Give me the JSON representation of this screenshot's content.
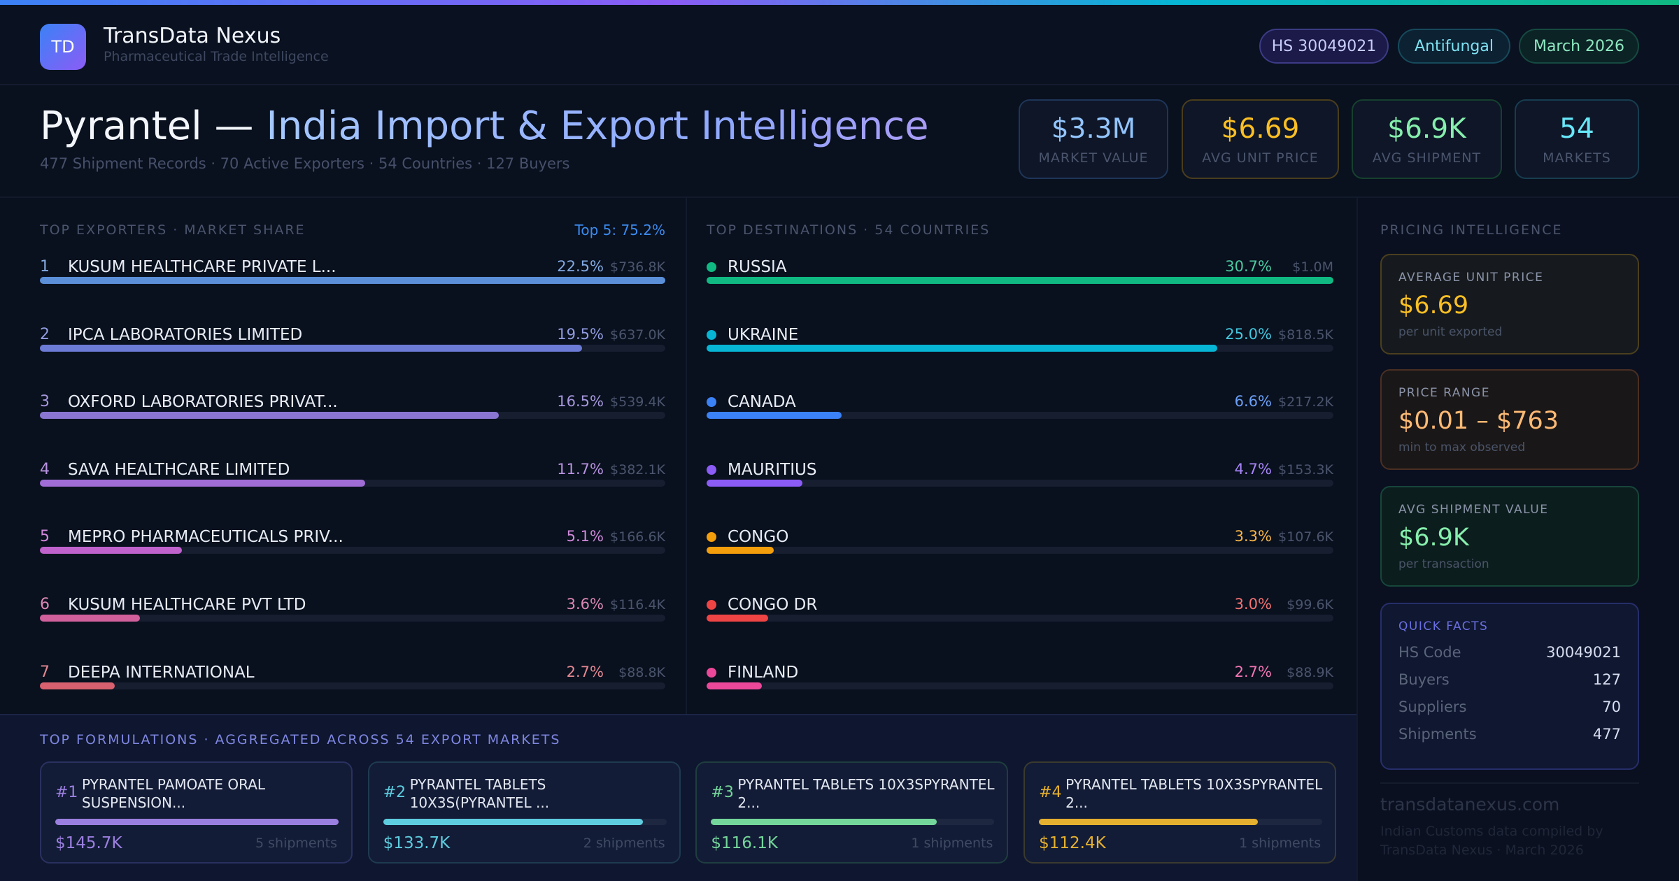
{
  "brand": {
    "logo": "TD",
    "name": "TransData Nexus",
    "subtitle": "Pharmaceutical Trade Intelligence"
  },
  "pills": [
    {
      "label": "HS 30049021"
    },
    {
      "label": "Antifungal"
    },
    {
      "label": "March 2026"
    }
  ],
  "hero": {
    "title_product": "Pyrantel —",
    "title_rest": "India Import & Export Intelligence",
    "subtitle": "477 Shipment Records · 70 Active Exporters · 54 Countries · 127 Buyers"
  },
  "kpis": [
    {
      "value": "$3.3M",
      "label": "MARKET VALUE",
      "color": "#93c5fd"
    },
    {
      "value": "$6.69",
      "label": "AVG UNIT PRICE",
      "color": "#fbbf24"
    },
    {
      "value": "$6.9K",
      "label": "AVG SHIPMENT",
      "color": "#86efac"
    },
    {
      "value": "54",
      "label": "MARKETS",
      "color": "#67e8f9"
    }
  ],
  "exporters": {
    "heading": "TOP EXPORTERS · MARKET SHARE",
    "top5": "Top 5: 75.2%",
    "items": [
      {
        "rank": "1",
        "name": "KUSUM HEALTHCARE PRIVATE L...",
        "pct": "22.5%",
        "value": "$736.8K",
        "share": 22.5,
        "color": "#5b8fd8"
      },
      {
        "rank": "2",
        "name": "IPCA LABORATORIES LIMITED",
        "pct": "19.5%",
        "value": "$637.0K",
        "share": 19.5,
        "color": "#6c7bd6"
      },
      {
        "rank": "3",
        "name": "OXFORD LABORATORIES PRIVAT...",
        "pct": "16.5%",
        "value": "$539.4K",
        "share": 16.5,
        "color": "#8a76d2"
      },
      {
        "rank": "4",
        "name": "SAVA HEALTHCARE LIMITED",
        "pct": "11.7%",
        "value": "$382.1K",
        "share": 11.7,
        "color": "#a06dd6"
      },
      {
        "rank": "5",
        "name": "MEPRO PHARMACEUTICALS PRIV...",
        "pct": "5.1%",
        "value": "$166.6K",
        "share": 5.1,
        "color": "#c062cc"
      },
      {
        "rank": "6",
        "name": "KUSUM HEALTHCARE PVT LTD",
        "pct": "3.6%",
        "value": "$116.4K",
        "share": 3.6,
        "color": "#d0609c"
      },
      {
        "rank": "7",
        "name": "DEEPA INTERNATIONAL",
        "pct": "2.7%",
        "value": "$88.8K",
        "share": 2.7,
        "color": "#d9606e"
      }
    ]
  },
  "destinations": {
    "heading": "TOP DESTINATIONS · 54 COUNTRIES",
    "items": [
      {
        "name": "RUSSIA",
        "pct": "30.7%",
        "value": "$1.0M",
        "share": 30.7,
        "color": "#10b981"
      },
      {
        "name": "UKRAINE",
        "pct": "25.0%",
        "value": "$818.5K",
        "share": 25.0,
        "color": "#06b6d4"
      },
      {
        "name": "CANADA",
        "pct": "6.6%",
        "value": "$217.2K",
        "share": 6.6,
        "color": "#3b82f6"
      },
      {
        "name": "MAURITIUS",
        "pct": "4.7%",
        "value": "$153.3K",
        "share": 4.7,
        "color": "#8b5cf6"
      },
      {
        "name": "CONGO",
        "pct": "3.3%",
        "value": "$107.6K",
        "share": 3.3,
        "color": "#f59e0b"
      },
      {
        "name": "CONGO DR",
        "pct": "3.0%",
        "value": "$99.6K",
        "share": 3.0,
        "color": "#ef4444"
      },
      {
        "name": "FINLAND",
        "pct": "2.7%",
        "value": "$88.9K",
        "share": 2.7,
        "color": "#ec4899"
      }
    ]
  },
  "formulations": {
    "heading": "TOP FORMULATIONS · AGGREGATED ACROSS 54 EXPORT MARKETS",
    "items": [
      {
        "rank": "#1",
        "name": "PYRANTEL PAMOATE ORAL SUSPENSION...",
        "value": "$145.7K",
        "amount": 145.7,
        "shipments": "5 shipments",
        "color": "#9b7fe0",
        "border": "#2a3160"
      },
      {
        "rank": "#2",
        "name": "PYRANTEL TABLETS 10X3S(PYRANTEL ...",
        "value": "$133.7K",
        "amount": 133.7,
        "shipments": "2 shipments",
        "color": "#5ecde0",
        "border": "#1f3a4f"
      },
      {
        "rank": "#3",
        "name": "PYRANTEL TABLETS 10X3SPYRANTEL 2...",
        "value": "$116.1K",
        "amount": 116.1,
        "shipments": "1 shipments",
        "color": "#74d69a",
        "border": "#1f3d3f"
      },
      {
        "rank": "#4",
        "name": "PYRANTEL TABLETS 10X3SPYRANTEL 2...",
        "value": "$112.4K",
        "amount": 112.4,
        "shipments": "1 shipments",
        "color": "#e5b02f",
        "border": "#3a3a2f"
      }
    ]
  },
  "pricing": {
    "heading": "PRICING INTELLIGENCE",
    "avg_unit": {
      "title": "AVERAGE UNIT PRICE",
      "value": "$6.69",
      "sub": "per unit exported"
    },
    "range": {
      "title": "PRICE RANGE",
      "value": "$0.01 – $763",
      "sub": "min to max observed"
    },
    "avg_ship": {
      "title": "AVG SHIPMENT VALUE",
      "value": "$6.9K",
      "sub": "per transaction"
    },
    "quick_facts": {
      "title": "QUICK FACTS",
      "rows": [
        {
          "k": "HS Code",
          "v": "30049021"
        },
        {
          "k": "Buyers",
          "v": "127"
        },
        {
          "k": "Suppliers",
          "v": "70"
        },
        {
          "k": "Shipments",
          "v": "477"
        }
      ]
    }
  },
  "footer": {
    "url": "transdatanexus.com",
    "line1": "Indian Customs data compiled by",
    "line2": "TransData Nexus · March 2026"
  }
}
